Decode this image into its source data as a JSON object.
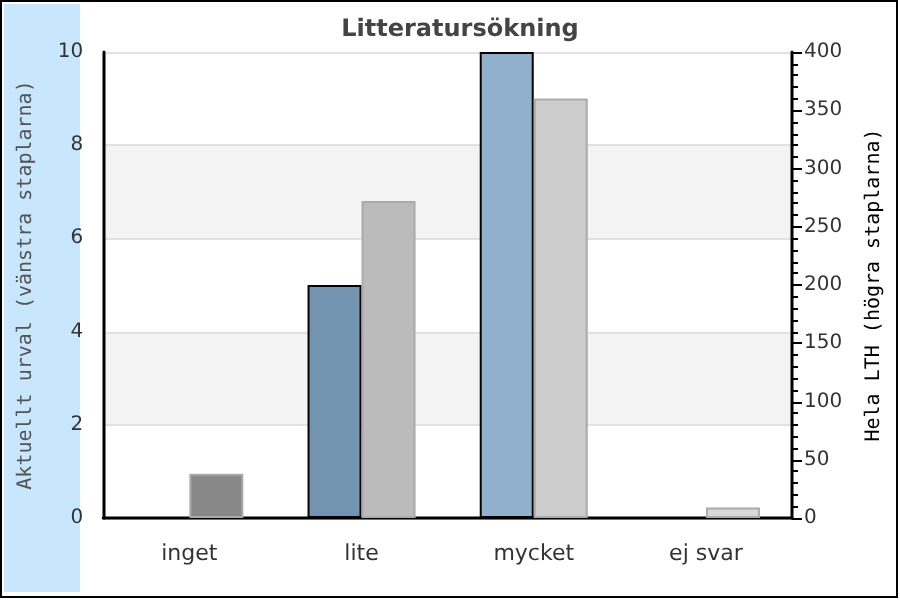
{
  "chart_data": {
    "type": "bar",
    "title": "Litteratursökning",
    "ylabel": "Aktuellt urval (vänstra staplarna)",
    "y2label": "Hela LTH (högra staplarna)",
    "categories": [
      "inget",
      "lite",
      "mycket",
      "ej svar"
    ],
    "series": [
      {
        "colors": [
          "#7294b0",
          "#7294b0",
          "#90b0cc",
          "#90b0cc"
        ],
        "values": [
          0,
          5,
          10,
          0
        ]
      },
      {
        "axis": "y2",
        "colors": [
          "#888888",
          "#bbbbbb",
          "#cccccc",
          "#d8d8d8"
        ],
        "values": [
          38,
          272,
          360,
          9
        ]
      }
    ],
    "ylim": [
      0,
      10
    ],
    "yticks": [
      0,
      2,
      4,
      6,
      8,
      10
    ],
    "y2lim": [
      0,
      400
    ],
    "y2ticks": [
      0,
      50,
      100,
      150,
      200,
      250,
      300,
      350,
      400
    ],
    "grid": "y"
  }
}
